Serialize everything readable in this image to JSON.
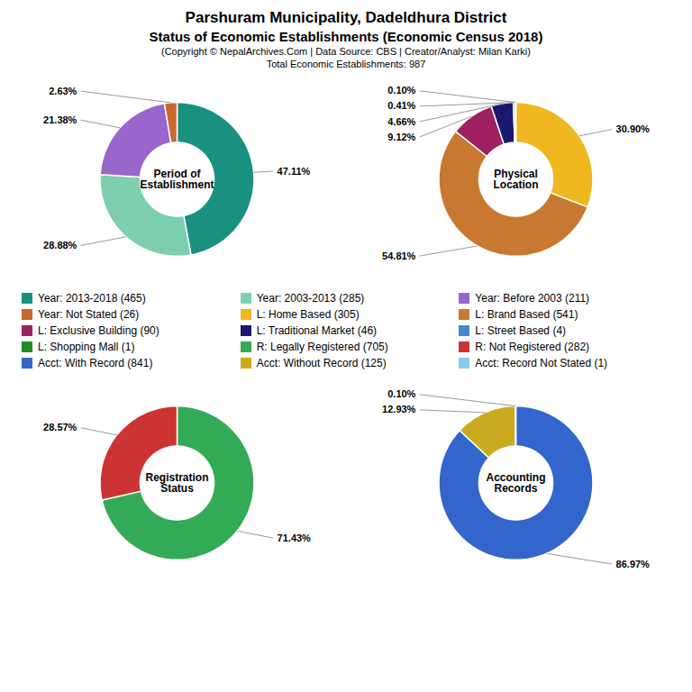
{
  "title": "Parshuram Municipality, Dadeldhura District",
  "subtitle": "Status of Economic Establishments (Economic Census 2018)",
  "annotations": [
    "(Copyright © NepalArchives.Com | Data Source: CBS | Creator/Analyst: Milan Karki)",
    "Total Economic Establishments: 987"
  ],
  "chart_data": [
    {
      "type": "pie",
      "title": "Period of\nEstablishment",
      "categories": [
        "Year: 2013-2018 (465)",
        "Year: 2003-2013 (285)",
        "Year: Before 2003 (211)",
        "Year: Not Stated (26)"
      ],
      "values": [
        47.11,
        28.88,
        21.38,
        2.63
      ],
      "value_labels": [
        "47.11%",
        "28.88%",
        "21.38%",
        "2.63%"
      ],
      "colors": [
        "#1a9080",
        "#7dcfb0",
        "#9966cc",
        "#c86830"
      ],
      "data_labels": true
    },
    {
      "type": "pie",
      "title": "Physical\nLocation",
      "categories": [
        "L: Home Based (305)",
        "L: Brand Based (541)",
        "L: Exclusive Building (90)",
        "L: Traditional Market (46)",
        "L: Street Based (4)",
        "L: Shopping Mall (1)"
      ],
      "values": [
        30.9,
        54.81,
        9.12,
        4.66,
        0.41,
        0.1
      ],
      "value_labels": [
        "30.90%",
        "54.81%",
        "9.12%",
        "4.66%",
        "0.41%",
        "0.10%"
      ],
      "colors": [
        "#f0b820",
        "#c87830",
        "#9e2060",
        "#191970",
        "#4488cc",
        "#228B22"
      ],
      "data_labels": true
    },
    {
      "type": "pie",
      "title": "Registration\nStatus",
      "categories": [
        "R: Legally Registered (705)",
        "R: Not Registered (282)"
      ],
      "values": [
        71.43,
        28.57
      ],
      "value_labels": [
        "71.43%",
        "28.57%"
      ],
      "colors": [
        "#33aa55",
        "#cc3333"
      ],
      "data_labels": true
    },
    {
      "type": "pie",
      "title": "Accounting\nRecords",
      "categories": [
        "Acct: With Record (841)",
        "Acct: Without Record (125)",
        "Acct: Record Not Stated (1)"
      ],
      "values": [
        86.97,
        12.93,
        0.1
      ],
      "value_labels": [
        "86.97%",
        "12.93%",
        "0.10%"
      ],
      "colors": [
        "#3366cc",
        "#ccaa20",
        "#88ccee"
      ],
      "data_labels": true
    }
  ]
}
